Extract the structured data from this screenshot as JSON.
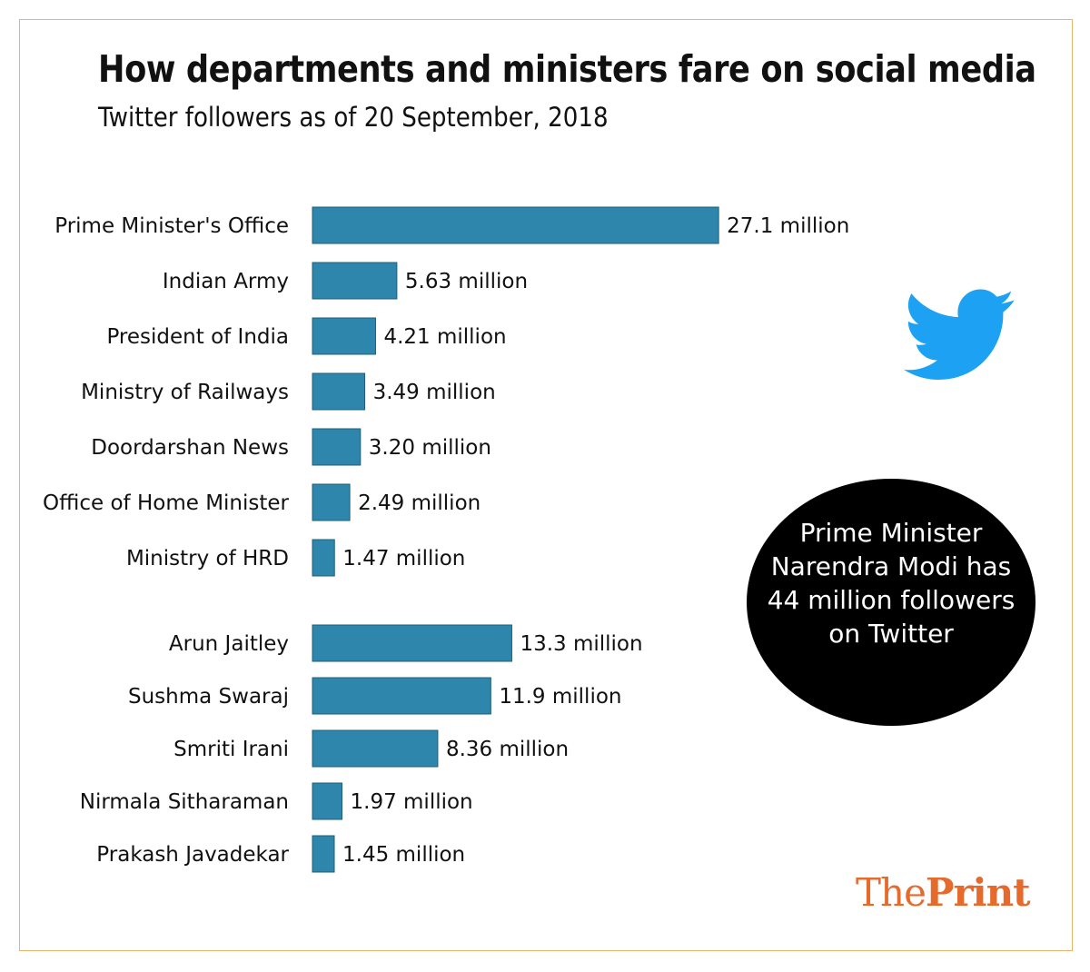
{
  "title": "How departments and ministers fare on social media",
  "subtitle": "Twitter followers as of 20 September, 2018",
  "callout": {
    "lines": [
      "Prime Minister",
      "Narendra Modi has",
      "44 million followers",
      "on Twitter"
    ]
  },
  "brand": {
    "part1": "The",
    "part2": "Print",
    "color": "#e56a2c"
  },
  "icons": {
    "bird": "twitter-bird-icon"
  },
  "colors": {
    "bar": "#2e86ac",
    "bird": "#1da1f2",
    "frame": "#e8b36a"
  },
  "chart_data": {
    "type": "bar",
    "orientation": "horizontal",
    "unit": "million",
    "title": "How departments and ministers fare on social media",
    "subtitle": "Twitter followers as of 20 September, 2018",
    "groups": [
      {
        "categories": [
          "Prime Minister's Office",
          "Indian Army",
          "President of India",
          "Ministry of Railways",
          "Doordarshan News",
          "Office of Home Minister",
          "Ministry of HRD"
        ],
        "values": [
          27.1,
          5.63,
          4.21,
          3.49,
          3.2,
          2.49,
          1.47
        ],
        "labels": [
          "27.1 million",
          "5.63 million",
          "4.21 million",
          "3.49 million",
          "3.20 million",
          "2.49 million",
          "1.47 million"
        ]
      },
      {
        "categories": [
          "Arun Jaitley",
          "Sushma Swaraj",
          "Smriti Irani",
          "Nirmala Sitharaman",
          "Prakash Javadekar"
        ],
        "values": [
          13.3,
          11.9,
          8.36,
          1.97,
          1.45
        ],
        "labels": [
          "13.3 million",
          "11.9 million",
          "8.36 million",
          "1.97 million",
          "1.45 million"
        ]
      }
    ]
  }
}
